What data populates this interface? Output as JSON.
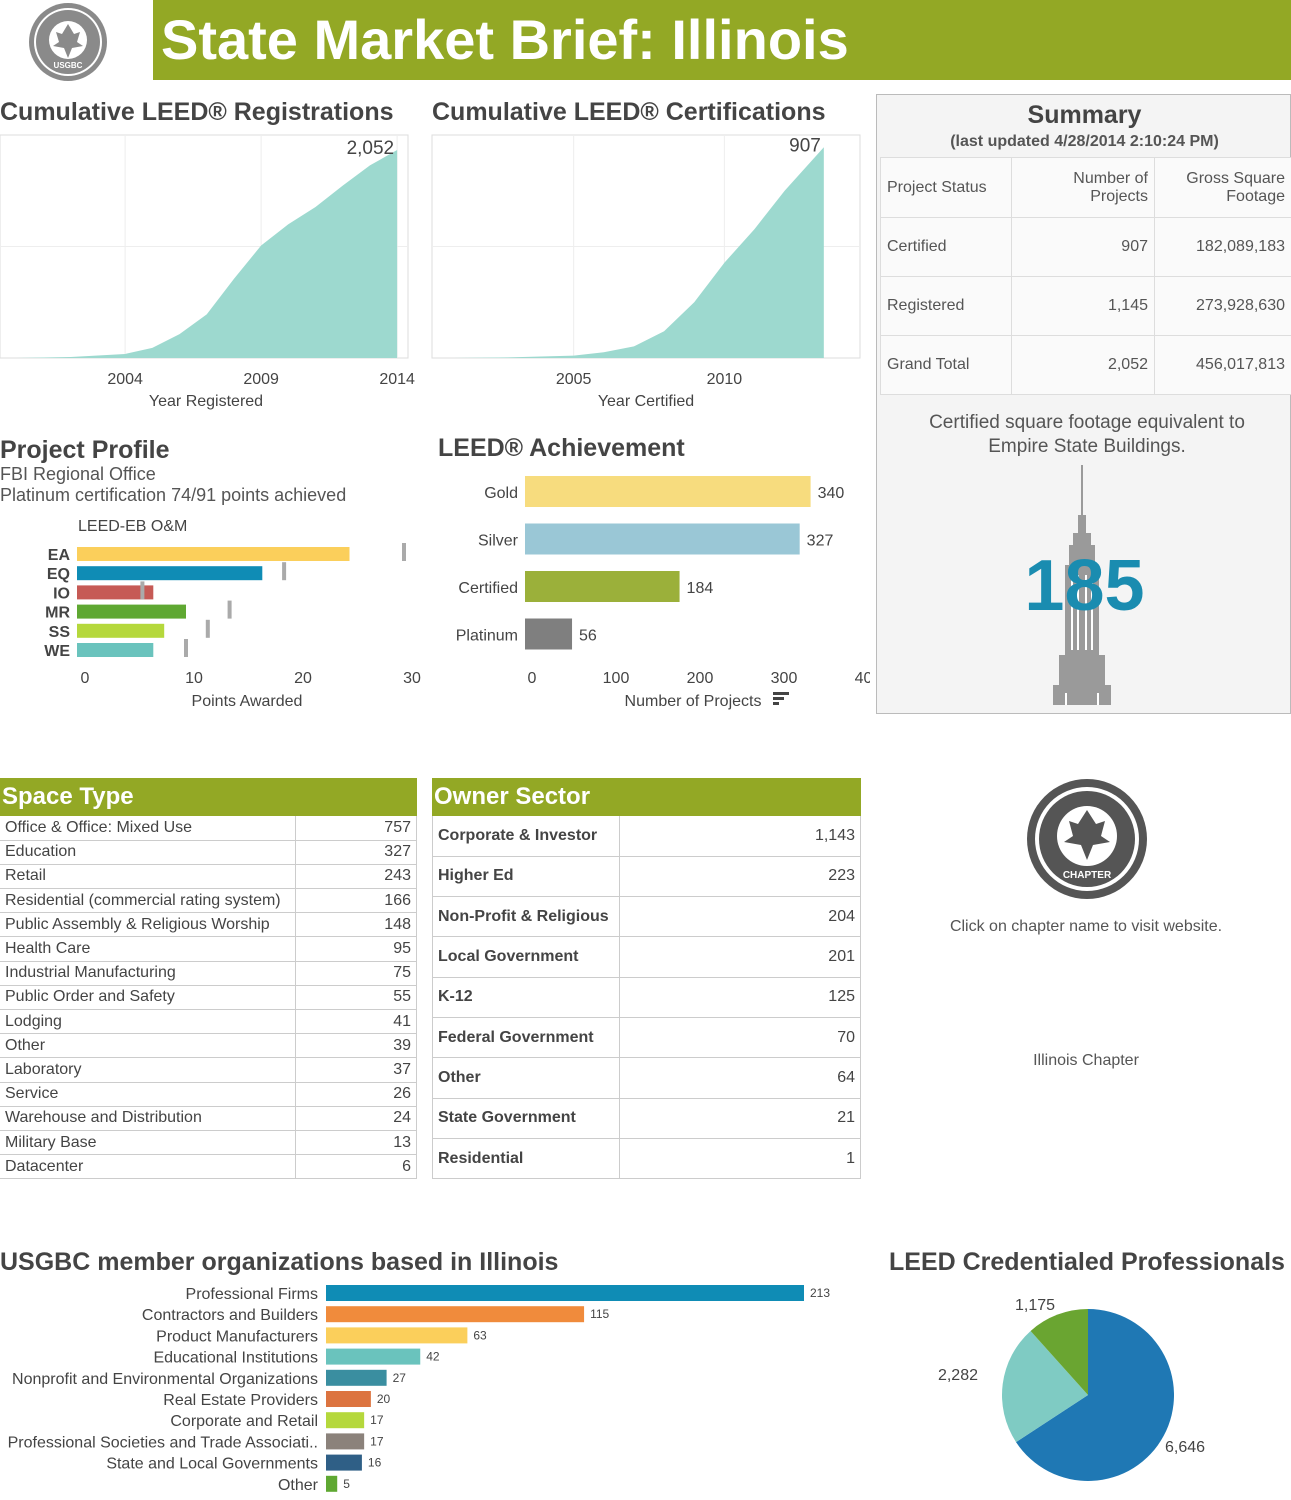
{
  "header": {
    "title": "State Market Brief:  Illinois",
    "logo_text": "U.S. GREEN BUILDING COUNCIL USGBC",
    "brand_color": "#93a825"
  },
  "registrations": {
    "title": "Cumulative LEED® Registrations",
    "xlabel": "Year Registered",
    "end_label": "2,052"
  },
  "certifications": {
    "title": "Cumulative LEED® Certifications",
    "xlabel": "Year Certified",
    "end_label": "907"
  },
  "chart_data": [
    {
      "type": "area",
      "id": "registrations",
      "xlabel": "Year Registered",
      "x_ticks": [
        "2004",
        "2009",
        "2014"
      ],
      "xlim": [
        1999.4,
        2014.4
      ],
      "ylim": [
        0,
        2200
      ],
      "grid": true,
      "color": "#9dd9cf",
      "x": [
        2000,
        2002,
        2004,
        2005,
        2006,
        2007,
        2008,
        2009,
        2010,
        2011,
        2012,
        2013,
        2014
      ],
      "y": [
        0,
        10,
        40,
        100,
        235,
        430,
        780,
        1110,
        1320,
        1490,
        1700,
        1900,
        2052
      ]
    },
    {
      "type": "area",
      "id": "certifications",
      "xlabel": "Year Certified",
      "x_ticks": [
        "2005",
        "2010"
      ],
      "xlim": [
        2000.3,
        2014.5
      ],
      "ylim": [
        0,
        960
      ],
      "grid": true,
      "color": "#9dd9cf",
      "x": [
        2001,
        2003,
        2005,
        2006,
        2007,
        2008,
        2009,
        2010,
        2011,
        2012,
        2013.3
      ],
      "y": [
        0,
        3,
        10,
        25,
        50,
        115,
        240,
        410,
        555,
        720,
        907
      ]
    },
    {
      "type": "bar",
      "id": "project-profile",
      "title": "LEED-EB O&M",
      "xlabel": "Points Awarded",
      "categories": [
        "EA",
        "EQ",
        "IO",
        "MR",
        "SS",
        "WE"
      ],
      "values": [
        25,
        17,
        7,
        10,
        8,
        7
      ],
      "possible": [
        30,
        19,
        6,
        14,
        12,
        10
      ],
      "colors": [
        "#fbcf5b",
        "#0f8cb5",
        "#c65a55",
        "#5fa832",
        "#b5d83c",
        "#6ac3bd"
      ],
      "x_ticks": [
        "0",
        "10",
        "20",
        "30"
      ],
      "xlim": [
        0,
        30
      ]
    },
    {
      "type": "bar",
      "id": "leed-achievement",
      "xlabel": "Number of Projects",
      "categories": [
        "Gold",
        "Silver",
        "Certified",
        "Platinum"
      ],
      "values": [
        340,
        327,
        184,
        56
      ],
      "colors": [
        "#f7dc7e",
        "#9ac7d6",
        "#9bb03a",
        "#7f7f7f"
      ],
      "x_ticks": [
        "0",
        "100",
        "200",
        "300",
        "400"
      ],
      "xlim": [
        0,
        400
      ]
    },
    {
      "type": "bar",
      "id": "member-orgs",
      "title": "USGBC member organizations based in Illinois",
      "categories": [
        "Professional Firms",
        "Contractors and Builders",
        "Product Manufacturers",
        "Educational Institutions",
        "Nonprofit and Environmental Organizations",
        "Real Estate Providers",
        "Corporate and Retail",
        "Professional Societies and Trade Associati..",
        "State and Local Governments",
        "Other"
      ],
      "values": [
        213,
        115,
        63,
        42,
        27,
        20,
        17,
        17,
        16,
        5
      ],
      "colors": [
        "#0f8cb5",
        "#f08b3c",
        "#fbcf5b",
        "#6ac3bd",
        "#3a8ea0",
        "#dc7440",
        "#b5d83c",
        "#8b827b",
        "#2f5f86",
        "#5fa832"
      ]
    },
    {
      "type": "pie",
      "id": "credentialed",
      "title": "LEED Credentialed Professionals",
      "values": [
        6646,
        2282,
        1175
      ],
      "labels": [
        "6,646",
        "2,282",
        "1,175"
      ],
      "colors": [
        "#1f78b4",
        "#7fcbc3",
        "#6aa531"
      ]
    }
  ],
  "project_profile": {
    "title": "Project Profile",
    "name": "FBI Regional Office",
    "detail": "Platinum certification 74/91 points achieved",
    "subtitle": "LEED-EB O&M",
    "xlabel": "Points Awarded"
  },
  "achievement": {
    "title": "LEED® Achievement",
    "xlabel": "Number of Projects",
    "labels": [
      "340",
      "327",
      "184",
      "56"
    ]
  },
  "summary": {
    "title": "Summary",
    "updated": "(last updated 4/28/2014 2:10:24 PM)",
    "headers": [
      "Project Status",
      "Number of Projects",
      "Gross Square Footage"
    ],
    "rows": [
      [
        "Certified",
        "907",
        "182,089,183"
      ],
      [
        "Registered",
        "1,145",
        "273,928,630"
      ],
      [
        "Grand Total",
        "2,052",
        "456,017,813"
      ]
    ],
    "esb_text": "Certified square footage equivalent to Empire State Buildings.",
    "esb_value": "185",
    "esb_color": "#1a8cb0"
  },
  "space_type": {
    "title": "Space Type",
    "rows": [
      [
        "Office & Office: Mixed Use",
        "757"
      ],
      [
        "Education",
        "327"
      ],
      [
        "Retail",
        "243"
      ],
      [
        "Residential (commercial rating system)",
        "166"
      ],
      [
        "Public Assembly & Religious Worship",
        "148"
      ],
      [
        "Health Care",
        "95"
      ],
      [
        "Industrial Manufacturing",
        "75"
      ],
      [
        "Public Order and Safety",
        "55"
      ],
      [
        "Lodging",
        "41"
      ],
      [
        "Other",
        "39"
      ],
      [
        "Laboratory",
        "37"
      ],
      [
        "Service",
        "26"
      ],
      [
        "Warehouse and Distribution",
        "24"
      ],
      [
        "Military Base",
        "13"
      ],
      [
        "Datacenter",
        "6"
      ]
    ]
  },
  "owner_sector": {
    "title": "Owner Sector",
    "rows": [
      [
        "Corporate & Investor",
        "1,143"
      ],
      [
        "Higher Ed",
        "223"
      ],
      [
        "Non-Profit & Religious",
        "204"
      ],
      [
        "Local Government",
        "201"
      ],
      [
        "K-12",
        "125"
      ],
      [
        "Federal Government",
        "70"
      ],
      [
        "Other",
        "64"
      ],
      [
        "State Government",
        "21"
      ],
      [
        "Residential",
        "1"
      ]
    ]
  },
  "chapter": {
    "logo_text": "U.S. GREEN BUILDING COUNCIL CHAPTER",
    "instruction": "Click on chapter name to visit website.",
    "link": "Illinois Chapter"
  },
  "members": {
    "title": "USGBC member organizations based in Illinois",
    "value_labels": [
      "213",
      "115",
      "63",
      "42",
      "27",
      "20",
      "17",
      "17",
      "16",
      "5"
    ]
  },
  "credentialed": {
    "title": "LEED Credentialed Professionals"
  }
}
